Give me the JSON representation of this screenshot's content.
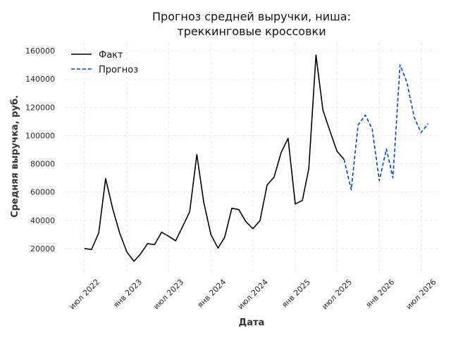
{
  "chart_data": {
    "type": "line",
    "title_line1": "Прогноз средней выручки, ниша:",
    "title_line2": "треккинговые кроссовки",
    "xlabel": "Дата",
    "ylabel": "Средняя выручка, руб.",
    "ylim": [
      3000,
      166000
    ],
    "xlim": [
      "2022-04-07",
      "2026-09-14"
    ],
    "grid": true,
    "legend_position": "top-left",
    "x_ticks": [
      {
        "date": "2022-07-01",
        "label": "июл 2022"
      },
      {
        "date": "2023-01-01",
        "label": "янв 2023"
      },
      {
        "date": "2023-07-01",
        "label": "июл 2023"
      },
      {
        "date": "2024-01-01",
        "label": "янв 2024"
      },
      {
        "date": "2024-07-01",
        "label": "июл 2024"
      },
      {
        "date": "2025-01-01",
        "label": "янв 2025"
      },
      {
        "date": "2025-07-01",
        "label": "июл 2025"
      },
      {
        "date": "2026-01-01",
        "label": "янв 2026"
      },
      {
        "date": "2026-07-01",
        "label": "июл 2026"
      }
    ],
    "y_ticks": [
      {
        "value": 20000,
        "label": "20000"
      },
      {
        "value": 40000,
        "label": "40000"
      },
      {
        "value": 60000,
        "label": "60000"
      },
      {
        "value": 80000,
        "label": "80000"
      },
      {
        "value": 100000,
        "label": "100000"
      },
      {
        "value": 120000,
        "label": "120000"
      },
      {
        "value": 140000,
        "label": "140000"
      },
      {
        "value": 160000,
        "label": "160000"
      }
    ],
    "series": [
      {
        "name": "Факт",
        "color": "#000000",
        "style": "solid",
        "points": [
          {
            "x": "2022-07-01",
            "y": 20000
          },
          {
            "x": "2022-08-01",
            "y": 19300
          },
          {
            "x": "2022-09-01",
            "y": 31000
          },
          {
            "x": "2022-10-01",
            "y": 69500
          },
          {
            "x": "2022-11-01",
            "y": 48000
          },
          {
            "x": "2022-12-01",
            "y": 31000
          },
          {
            "x": "2023-01-01",
            "y": 17500
          },
          {
            "x": "2023-02-01",
            "y": 11000
          },
          {
            "x": "2023-03-01",
            "y": 16000
          },
          {
            "x": "2023-04-01",
            "y": 23500
          },
          {
            "x": "2023-05-01",
            "y": 22700
          },
          {
            "x": "2023-06-01",
            "y": 31500
          },
          {
            "x": "2023-07-01",
            "y": 28700
          },
          {
            "x": "2023-08-01",
            "y": 25500
          },
          {
            "x": "2023-09-01",
            "y": 35800
          },
          {
            "x": "2023-10-01",
            "y": 46000
          },
          {
            "x": "2023-11-01",
            "y": 86500
          },
          {
            "x": "2023-12-01",
            "y": 52500
          },
          {
            "x": "2024-01-01",
            "y": 29800
          },
          {
            "x": "2024-02-01",
            "y": 20300
          },
          {
            "x": "2024-03-01",
            "y": 28000
          },
          {
            "x": "2024-04-01",
            "y": 48500
          },
          {
            "x": "2024-05-01",
            "y": 47500
          },
          {
            "x": "2024-06-01",
            "y": 39000
          },
          {
            "x": "2024-07-01",
            "y": 34000
          },
          {
            "x": "2024-08-01",
            "y": 39700
          },
          {
            "x": "2024-09-01",
            "y": 65000
          },
          {
            "x": "2024-10-01",
            "y": 70500
          },
          {
            "x": "2024-11-01",
            "y": 88000
          },
          {
            "x": "2024-12-01",
            "y": 98000
          },
          {
            "x": "2025-01-01",
            "y": 51500
          },
          {
            "x": "2025-02-01",
            "y": 54000
          },
          {
            "x": "2025-03-01",
            "y": 76500
          },
          {
            "x": "2025-04-01",
            "y": 157000
          },
          {
            "x": "2025-05-01",
            "y": 118000
          },
          {
            "x": "2025-06-01",
            "y": 103000
          },
          {
            "x": "2025-07-01",
            "y": 89000
          },
          {
            "x": "2025-08-01",
            "y": 83000
          }
        ]
      },
      {
        "name": "Прогноз",
        "color": "#0044cc",
        "style": "dashed",
        "points": [
          {
            "x": "2025-08-01",
            "y": 83000
          },
          {
            "x": "2025-09-01",
            "y": 61500
          },
          {
            "x": "2025-10-01",
            "y": 107500
          },
          {
            "x": "2025-11-01",
            "y": 114500
          },
          {
            "x": "2025-12-01",
            "y": 104500
          },
          {
            "x": "2026-01-01",
            "y": 68000
          },
          {
            "x": "2026-02-01",
            "y": 90500
          },
          {
            "x": "2026-03-01",
            "y": 70000
          },
          {
            "x": "2026-04-01",
            "y": 150000
          },
          {
            "x": "2026-05-01",
            "y": 137500
          },
          {
            "x": "2026-06-01",
            "y": 113000
          },
          {
            "x": "2026-07-01",
            "y": 102000
          },
          {
            "x": "2026-08-01",
            "y": 108500
          }
        ]
      }
    ]
  }
}
